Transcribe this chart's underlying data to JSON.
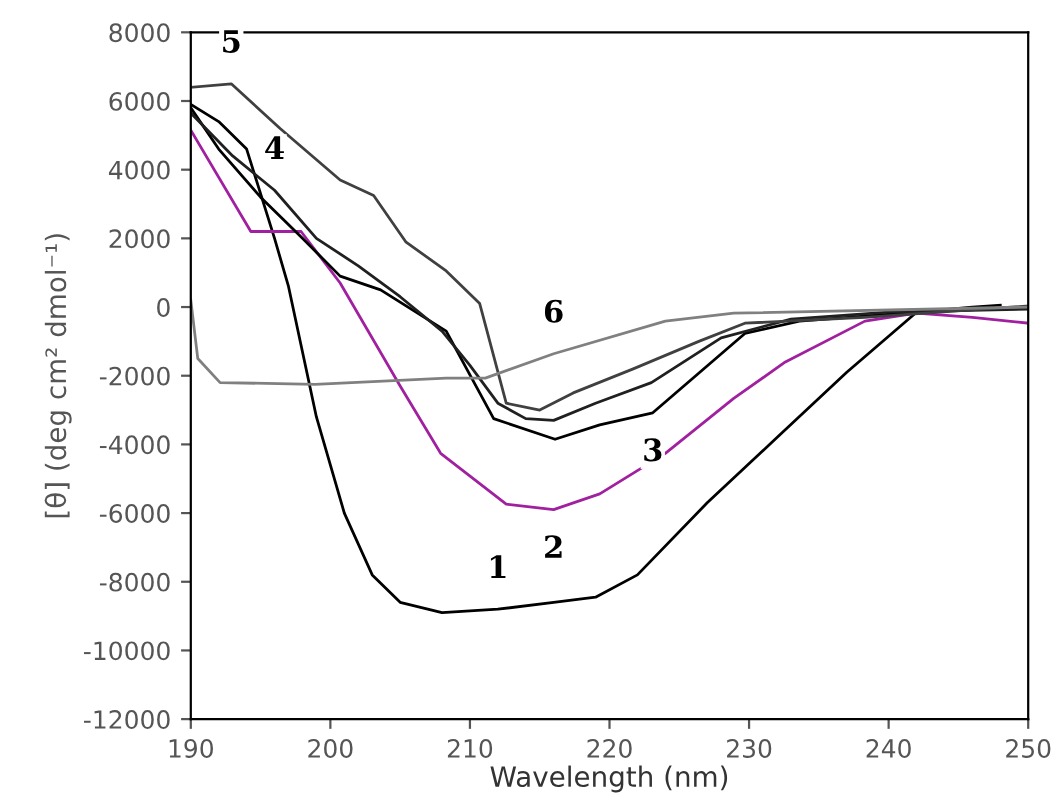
{
  "chart_data": {
    "type": "line",
    "xlabel": "Wavelength (nm)",
    "ylabel": "[θ] (deg cm² dmol⁻¹)",
    "xlim": [
      190,
      250
    ],
    "xticks": [
      190,
      200,
      210,
      220,
      230,
      240,
      250
    ],
    "ylim": [
      -12000,
      8000
    ],
    "yticks": [
      -12000,
      -10000,
      -8000,
      -6000,
      -4000,
      -2000,
      0,
      2000,
      4000,
      6000,
      8000
    ],
    "grid": false,
    "legend": false,
    "marker": "none",
    "line_style": "solid",
    "series": [
      {
        "color": "#000000",
        "x": [
          190,
          192,
          194,
          196,
          197,
          199,
          201,
          203,
          205,
          208,
          212,
          216,
          219,
          222,
          227,
          232,
          237,
          242,
          246,
          248
        ],
        "values": [
          5900,
          5400,
          4600,
          2000,
          600,
          -3200,
          -6000,
          -7800,
          -8600,
          -8900,
          -8800,
          -8600,
          -8450,
          -7800,
          -5700,
          -3800,
          -1900,
          -150,
          0,
          50
        ]
      },
      {
        "color": "#a020a0",
        "x": [
          190,
          194.3,
          197.9,
          200.7,
          205,
          207.9,
          212.6,
          216,
          219.3,
          224,
          228.9,
          232.6,
          238.3,
          242,
          246,
          250
        ],
        "values": [
          5150,
          2200,
          2200,
          700,
          -2300,
          -4260,
          -5740,
          -5900,
          -5440,
          -4260,
          -2660,
          -1600,
          -410,
          -180,
          -300,
          -470
        ]
      },
      {
        "color": "#000000",
        "x": [
          190,
          192,
          195,
          198,
          200.7,
          203.6,
          208.3,
          210.7,
          211.7,
          216.1,
          219.3,
          223.1,
          229.7,
          233.6,
          242,
          250
        ],
        "values": [
          5800,
          4600,
          3200,
          2000,
          900,
          500,
          -700,
          -2500,
          -3250,
          -3850,
          -3430,
          -3080,
          -770,
          -410,
          -150,
          0
        ]
      },
      {
        "color": "#202020",
        "x": [
          190,
          193,
          196,
          199,
          202,
          205,
          208,
          210,
          212,
          214,
          216,
          219,
          223,
          228,
          233,
          240,
          250
        ],
        "values": [
          5650,
          4400,
          3400,
          2000,
          1200,
          300,
          -700,
          -1700,
          -2800,
          -3250,
          -3300,
          -2800,
          -2200,
          -900,
          -350,
          -150,
          -60
        ]
      },
      {
        "color": "#404040",
        "x": [
          190,
          192.9,
          196.4,
          200.7,
          203.1,
          205.4,
          208.3,
          210.7,
          212.6,
          215,
          217.4,
          221.7,
          226.4,
          229.7,
          238.3,
          250
        ],
        "values": [
          6400,
          6500,
          5200,
          3700,
          3250,
          1900,
          1050,
          100,
          -2800,
          -3000,
          -2500,
          -1800,
          -1000,
          -470,
          -300,
          30
        ]
      },
      {
        "color": "#808080",
        "x": [
          190,
          190.5,
          192.1,
          198.9,
          208.3,
          211.1,
          216,
          224,
          228.9,
          250
        ],
        "values": [
          200,
          -1500,
          -2200,
          -2250,
          -2070,
          -2070,
          -1360,
          -410,
          -180,
          0
        ]
      }
    ],
    "annotations": [
      {
        "text": "1",
        "x": 212,
        "y": -8800
      },
      {
        "text": "2",
        "x": 216,
        "y": -5900
      },
      {
        "text": "3",
        "x": 223.1,
        "y": -3080
      },
      {
        "text": "4",
        "x": 196,
        "y": 3400
      },
      {
        "text": "5",
        "x": 192.9,
        "y": 6500
      },
      {
        "text": "6",
        "x": 216,
        "y": -1360
      }
    ]
  }
}
